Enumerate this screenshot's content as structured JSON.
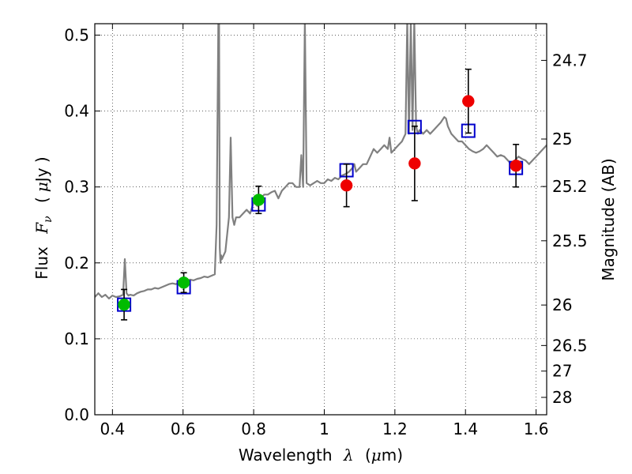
{
  "chart_data": {
    "type": "scatter",
    "x_axis": {
      "label_prefix": "Wavelength",
      "label_symbol": "λ",
      "label_unit_open": "(",
      "label_unit_mu": "μ",
      "label_unit_rest": "m)",
      "xlim": [
        0.35,
        1.63
      ],
      "ticks": [
        0.4,
        0.6,
        0.8,
        1.0,
        1.2,
        1.4,
        1.6
      ],
      "tick_labels": [
        "0.4",
        "0.6",
        "0.8",
        "1",
        "1.2",
        "1.4",
        "1.6"
      ]
    },
    "y_axis": {
      "label_prefix": "Flux",
      "label_symbol": "F",
      "label_sub": "ν",
      "label_unit_open": "(",
      "label_unit_mu": "μ",
      "label_unit_rest": "Jy )",
      "ylim": [
        0.0,
        0.515
      ],
      "ticks": [
        0.0,
        0.1,
        0.2,
        0.3,
        0.4,
        0.5
      ],
      "tick_labels": [
        "0.0",
        "0.1",
        "0.2",
        "0.3",
        "0.4",
        "0.5"
      ]
    },
    "y2_axis": {
      "label": "Magnitude (AB)",
      "ticks": [
        {
          "flux": 0.4667,
          "label": "24.7"
        },
        {
          "flux": 0.3631,
          "label": "25"
        },
        {
          "flux": 0.3006,
          "label": "25.2"
        },
        {
          "flux": 0.2291,
          "label": "25.5"
        },
        {
          "flux": 0.1445,
          "label": "26"
        },
        {
          "flux": 0.0912,
          "label": "26.5"
        },
        {
          "flux": 0.0575,
          "label": "27"
        },
        {
          "flux": 0.0229,
          "label": "28"
        }
      ]
    },
    "grid": true,
    "colors": {
      "model": "#808080",
      "green": "#00bb00",
      "red": "#ee0000",
      "blue": "#0000cc",
      "error": "#000000"
    },
    "model_spectrum": {
      "x": [
        0.35,
        0.36,
        0.37,
        0.38,
        0.39,
        0.4,
        0.41,
        0.42,
        0.43,
        0.435,
        0.44,
        0.445,
        0.45,
        0.46,
        0.47,
        0.48,
        0.49,
        0.5,
        0.51,
        0.52,
        0.53,
        0.54,
        0.55,
        0.56,
        0.57,
        0.58,
        0.59,
        0.6,
        0.61,
        0.62,
        0.63,
        0.64,
        0.65,
        0.66,
        0.67,
        0.68,
        0.69,
        0.695,
        0.7,
        0.702,
        0.704,
        0.706,
        0.708,
        0.71,
        0.72,
        0.73,
        0.735,
        0.74,
        0.745,
        0.75,
        0.76,
        0.77,
        0.78,
        0.79,
        0.8,
        0.81,
        0.82,
        0.83,
        0.84,
        0.85,
        0.86,
        0.87,
        0.88,
        0.89,
        0.9,
        0.91,
        0.92,
        0.93,
        0.935,
        0.94,
        0.945,
        0.95,
        0.96,
        0.97,
        0.98,
        0.99,
        1.0,
        1.01,
        1.02,
        1.03,
        1.04,
        1.05,
        1.06,
        1.07,
        1.08,
        1.085,
        1.09,
        1.1,
        1.11,
        1.12,
        1.13,
        1.14,
        1.15,
        1.16,
        1.17,
        1.18,
        1.185,
        1.19,
        1.2,
        1.21,
        1.22,
        1.23,
        1.235,
        1.24,
        1.245,
        1.25,
        1.255,
        1.26,
        1.265,
        1.27,
        1.28,
        1.29,
        1.3,
        1.31,
        1.32,
        1.33,
        1.34,
        1.345,
        1.35,
        1.36,
        1.37,
        1.38,
        1.39,
        1.4,
        1.41,
        1.42,
        1.43,
        1.44,
        1.45,
        1.46,
        1.47,
        1.48,
        1.49,
        1.5,
        1.51,
        1.52,
        1.53,
        1.54,
        1.55,
        1.56,
        1.57,
        1.58,
        1.59,
        1.6,
        1.61,
        1.62,
        1.63
      ],
      "y": [
        0.155,
        0.16,
        0.155,
        0.158,
        0.153,
        0.157,
        0.155,
        0.156,
        0.158,
        0.205,
        0.16,
        0.157,
        0.158,
        0.157,
        0.16,
        0.162,
        0.163,
        0.165,
        0.165,
        0.167,
        0.166,
        0.168,
        0.17,
        0.172,
        0.173,
        0.172,
        0.175,
        0.175,
        0.176,
        0.178,
        0.177,
        0.179,
        0.18,
        0.182,
        0.181,
        0.183,
        0.185,
        0.25,
        0.52,
        0.52,
        0.22,
        0.2,
        0.21,
        0.205,
        0.215,
        0.26,
        0.365,
        0.26,
        0.25,
        0.26,
        0.26,
        0.265,
        0.27,
        0.265,
        0.28,
        0.275,
        0.285,
        0.29,
        0.29,
        0.293,
        0.295,
        0.285,
        0.295,
        0.3,
        0.305,
        0.305,
        0.3,
        0.3,
        0.342,
        0.3,
        0.52,
        0.305,
        0.302,
        0.305,
        0.308,
        0.305,
        0.305,
        0.31,
        0.308,
        0.312,
        0.31,
        0.315,
        0.317,
        0.32,
        0.325,
        0.33,
        0.32,
        0.325,
        0.33,
        0.33,
        0.34,
        0.35,
        0.345,
        0.35,
        0.355,
        0.35,
        0.365,
        0.345,
        0.35,
        0.355,
        0.36,
        0.37,
        0.52,
        0.37,
        0.52,
        0.375,
        0.52,
        0.38,
        0.37,
        0.375,
        0.37,
        0.375,
        0.37,
        0.375,
        0.38,
        0.385,
        0.392,
        0.39,
        0.38,
        0.37,
        0.365,
        0.36,
        0.36,
        0.355,
        0.35,
        0.347,
        0.345,
        0.347,
        0.35,
        0.355,
        0.35,
        0.345,
        0.34,
        0.342,
        0.34,
        0.335,
        0.33,
        0.335,
        0.34,
        0.337,
        0.335,
        0.33,
        0.335,
        0.34,
        0.345,
        0.35,
        0.355
      ]
    },
    "model_points": {
      "x": [
        0.433,
        0.602,
        0.814,
        1.063,
        1.256,
        1.408,
        1.543
      ],
      "y": [
        0.145,
        0.168,
        0.277,
        0.322,
        0.379,
        0.374,
        0.325
      ]
    },
    "observed_green": {
      "x": [
        0.433,
        0.602,
        0.814
      ],
      "y": [
        0.145,
        0.174,
        0.283
      ],
      "err": [
        0.02,
        0.013,
        0.018
      ]
    },
    "observed_red": {
      "x": [
        1.063,
        1.256,
        1.408,
        1.543
      ],
      "y": [
        0.302,
        0.331,
        0.413,
        0.328
      ],
      "err": [
        0.028,
        0.049,
        0.042,
        0.028
      ]
    }
  }
}
